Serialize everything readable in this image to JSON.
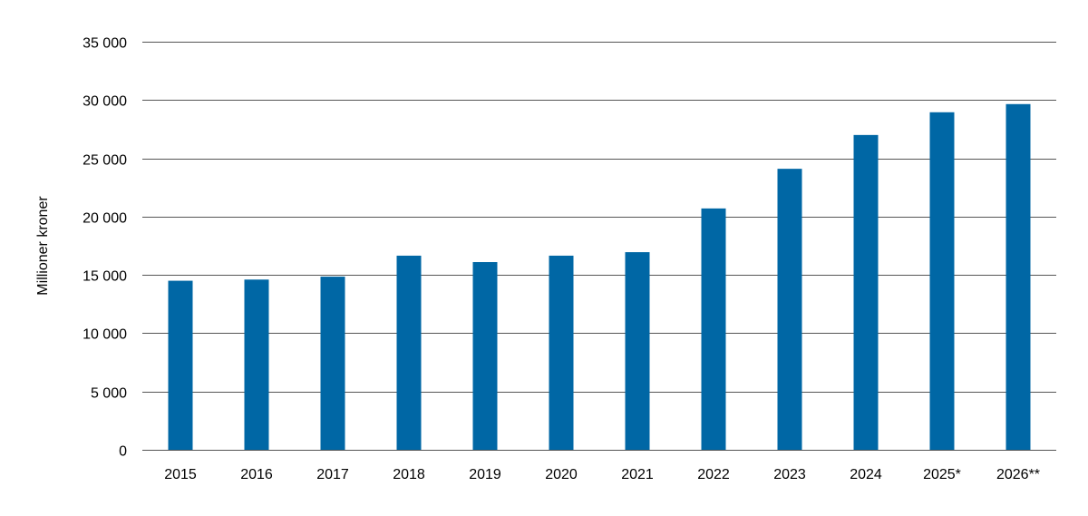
{
  "chart_data": {
    "type": "bar",
    "title": "",
    "xlabel": "",
    "ylabel": "Millioner kroner",
    "categories": [
      "2015",
      "2016",
      "2017",
      "2018",
      "2019",
      "2020",
      "2021",
      "2022",
      "2023",
      "2024",
      "2025*",
      "2026**"
    ],
    "values": [
      14500,
      14600,
      14850,
      16650,
      16100,
      16650,
      16950,
      20700,
      24100,
      27000,
      28950,
      29650
    ],
    "ylim": [
      0,
      35000
    ],
    "yticks": [
      0,
      5000,
      10000,
      15000,
      20000,
      25000,
      30000,
      35000
    ],
    "ytick_labels": [
      "0",
      "5 000",
      "10 000",
      "15 000",
      "20 000",
      "25 000",
      "30 000",
      "35 000"
    ],
    "grid": true,
    "legend": "none",
    "colors": {
      "bar": "#0067a5",
      "grid": "#555555",
      "text": "#000000"
    }
  }
}
